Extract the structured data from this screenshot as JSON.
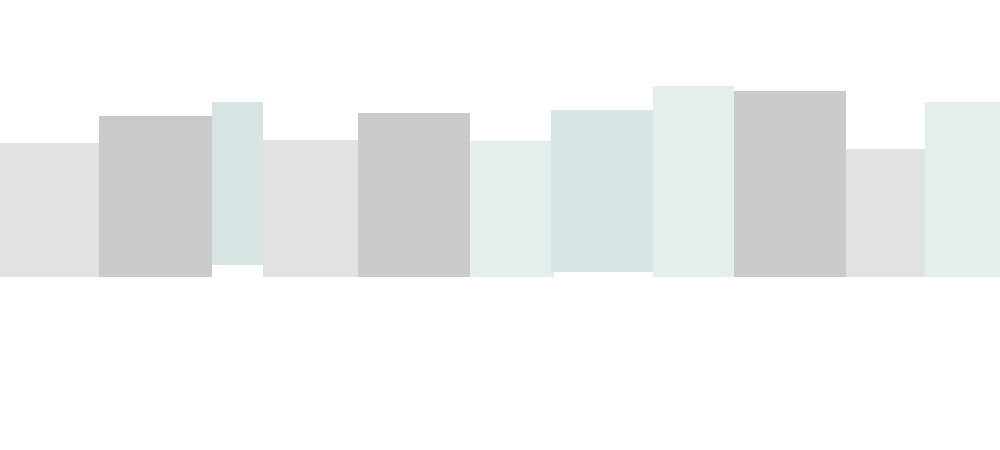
{
  "palette": {
    "background": "#ffffff",
    "light_gray": "#e2e2e2",
    "mid_gray": "#cacaca",
    "pale_teal": "#d6e4e4",
    "paler_teal": "#e3eeed"
  },
  "blocks": [
    {
      "name": "block-1",
      "color": "#e2e2e2"
    },
    {
      "name": "block-2",
      "color": "#cacaca"
    },
    {
      "name": "block-3",
      "color": "#d6e4e4"
    },
    {
      "name": "block-4",
      "color": "#e2e2e2"
    },
    {
      "name": "block-5",
      "color": "#cacaca"
    },
    {
      "name": "block-6",
      "color": "#e3eeed"
    },
    {
      "name": "block-7",
      "color": "#d6e4e4"
    },
    {
      "name": "block-8",
      "color": "#e3eeed"
    },
    {
      "name": "block-9",
      "color": "#cacaca"
    },
    {
      "name": "block-10",
      "color": "#e2e2e2"
    },
    {
      "name": "block-11",
      "color": "#e3eeed"
    }
  ]
}
